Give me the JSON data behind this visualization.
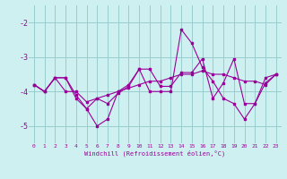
{
  "xlabel": "Windchill (Refroidissement éolien,°C)",
  "ylabel": "",
  "background_color": "#cff0f0",
  "line_color": "#990099",
  "grid_color": "#99cccc",
  "x": [
    0,
    1,
    2,
    3,
    4,
    5,
    6,
    7,
    8,
    9,
    10,
    11,
    12,
    13,
    14,
    15,
    16,
    17,
    18,
    19,
    20,
    21,
    22,
    23
  ],
  "line1": [
    -3.8,
    -4.0,
    -3.6,
    -4.0,
    -4.0,
    -4.3,
    -4.2,
    -4.1,
    -4.0,
    -3.9,
    -3.8,
    -3.7,
    -3.7,
    -3.6,
    -3.5,
    -3.5,
    -3.4,
    -3.5,
    -3.5,
    -3.6,
    -3.7,
    -3.7,
    -3.8,
    -3.5
  ],
  "line2": [
    -3.8,
    -4.0,
    -3.6,
    -3.6,
    -4.2,
    -4.5,
    -5.0,
    -4.8,
    -4.0,
    -3.8,
    -3.35,
    -4.0,
    -4.0,
    -4.0,
    -2.2,
    -2.6,
    -3.3,
    -3.7,
    -4.2,
    -4.35,
    -4.8,
    -4.35,
    -3.6,
    -3.5
  ],
  "line3": [
    -3.8,
    -4.0,
    -3.6,
    -3.6,
    -4.1,
    -4.5,
    -4.2,
    -4.35,
    -4.05,
    -3.85,
    -3.35,
    -3.35,
    -3.85,
    -3.85,
    -3.45,
    -3.45,
    -3.05,
    -4.2,
    -3.75,
    -3.05,
    -4.35,
    -4.35,
    -3.75,
    -3.5
  ],
  "ylim": [
    -5.5,
    -1.5
  ],
  "yticks": [
    -5,
    -4,
    -3,
    -2
  ],
  "xlim": [
    -0.5,
    23.5
  ],
  "xticks": [
    0,
    1,
    2,
    3,
    4,
    5,
    6,
    7,
    8,
    9,
    10,
    11,
    12,
    13,
    14,
    15,
    16,
    17,
    18,
    19,
    20,
    21,
    22,
    23
  ]
}
